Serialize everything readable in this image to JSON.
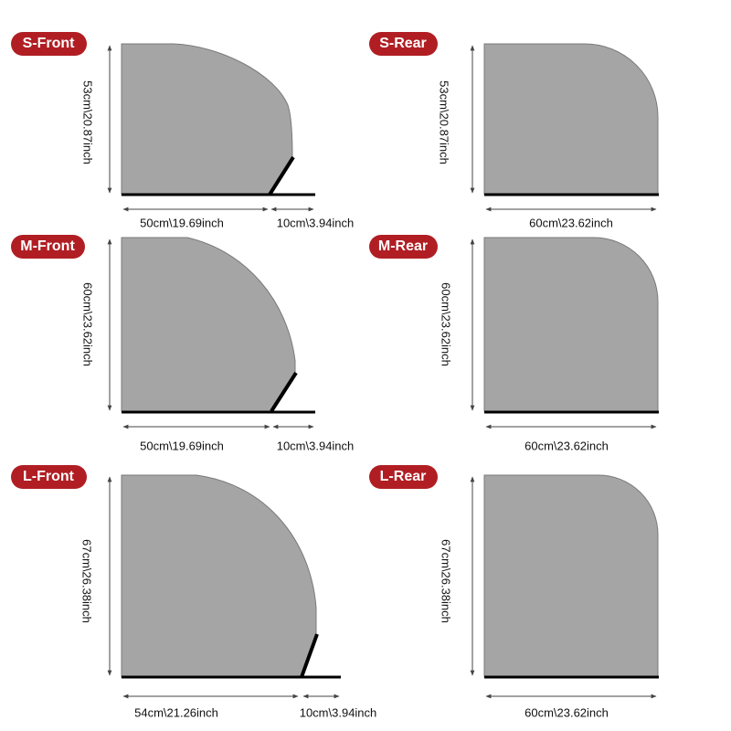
{
  "panels": [
    {
      "label": "S-Front",
      "height": "53cm\\20.87inch",
      "width": "50cm\\19.69inch",
      "extension": "10cm\\3.94inch"
    },
    {
      "label": "S-Rear",
      "height": "53cm\\20.87inch",
      "width": "60cm\\23.62inch"
    },
    {
      "label": "M-Front",
      "height": "60cm\\23.62inch",
      "width": "50cm\\19.69inch",
      "extension": "10cm\\3.94inch"
    },
    {
      "label": "M-Rear",
      "height": "60cm\\23.62inch",
      "width": "60cm\\23.62inch"
    },
    {
      "label": "L-Front",
      "height": "67cm\\26.38inch",
      "width": "54cm\\21.26inch",
      "extension": "10cm\\3.94inch"
    },
    {
      "label": "L-Rear",
      "height": "67cm\\26.38inch",
      "width": "60cm\\23.62inch"
    }
  ]
}
